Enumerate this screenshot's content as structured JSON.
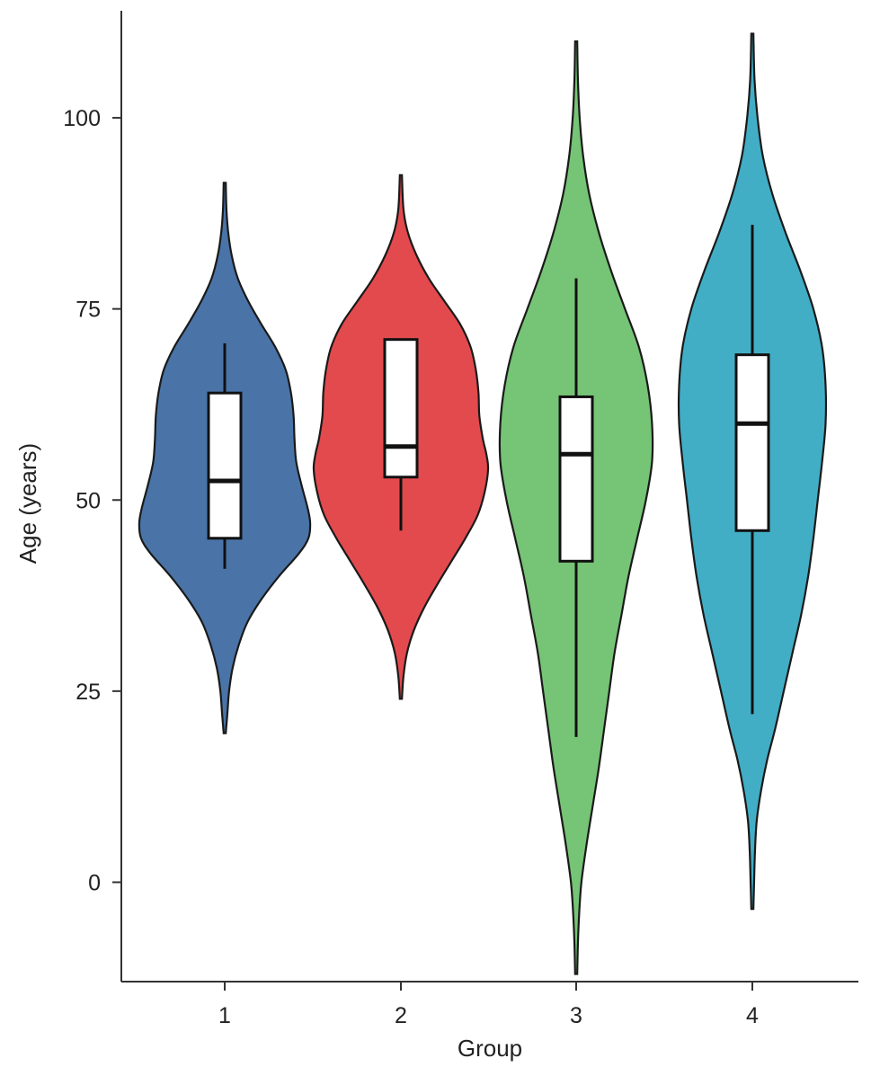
{
  "chart_data": {
    "type": "violin",
    "title": "",
    "xlabel": "Group",
    "ylabel": "Age (years)",
    "ylim": [
      -13,
      114
    ],
    "y_ticks": [
      0,
      25,
      50,
      75,
      100
    ],
    "categories": [
      "1",
      "2",
      "3",
      "4"
    ],
    "grid": false,
    "legend": "none",
    "series": [
      {
        "category": "1",
        "color": "#4a74a8",
        "box": {
          "whisker_low": 41,
          "q1": 45,
          "median": 52.5,
          "q3": 64,
          "whisker_high": 70.5
        },
        "density": {
          "y": [
            19.5,
            22,
            25,
            28,
            31,
            34,
            37,
            40,
            43,
            45,
            47,
            49,
            52,
            55,
            58,
            61,
            64,
            67,
            70,
            73,
            76,
            79,
            82,
            85,
            88,
            91.5
          ],
          "half_width": [
            0.012,
            0.03,
            0.05,
            0.09,
            0.16,
            0.26,
            0.42,
            0.62,
            0.85,
            0.96,
            0.98,
            0.95,
            0.88,
            0.82,
            0.8,
            0.79,
            0.76,
            0.7,
            0.58,
            0.42,
            0.27,
            0.15,
            0.08,
            0.04,
            0.02,
            0.012
          ]
        }
      },
      {
        "category": "2",
        "color": "#e34a4e",
        "box": {
          "whisker_low": 46,
          "q1": 53,
          "median": 57,
          "q3": 71,
          "whisker_high": 71
        },
        "density": {
          "y": [
            24,
            27,
            30,
            33,
            36,
            39,
            42,
            45,
            48,
            51,
            54,
            56,
            58,
            61,
            64,
            67,
            70,
            73,
            76,
            79,
            82,
            85,
            88,
            92.5
          ],
          "half_width": [
            0.012,
            0.03,
            0.07,
            0.15,
            0.27,
            0.42,
            0.58,
            0.74,
            0.88,
            0.96,
            1.0,
            0.98,
            0.94,
            0.9,
            0.89,
            0.86,
            0.8,
            0.68,
            0.5,
            0.32,
            0.18,
            0.08,
            0.03,
            0.012
          ]
        }
      },
      {
        "category": "3",
        "color": "#76c476",
        "box": {
          "whisker_low": 19,
          "q1": 42,
          "median": 56,
          "q3": 63.5,
          "whisker_high": 79
        },
        "density": {
          "y": [
            -12,
            -8,
            -4,
            0,
            5,
            10,
            15,
            20,
            25,
            30,
            35,
            40,
            45,
            50,
            55,
            60,
            65,
            70,
            75,
            80,
            85,
            90,
            95,
            100,
            105,
            110
          ],
          "half_width": [
            0.012,
            0.02,
            0.035,
            0.06,
            0.12,
            0.19,
            0.26,
            0.32,
            0.38,
            0.44,
            0.52,
            0.6,
            0.7,
            0.8,
            0.87,
            0.87,
            0.82,
            0.72,
            0.56,
            0.4,
            0.26,
            0.15,
            0.08,
            0.04,
            0.02,
            0.012
          ]
        }
      },
      {
        "category": "4",
        "color": "#42aec6",
        "box": {
          "whisker_low": 22,
          "q1": 46,
          "median": 60,
          "q3": 69,
          "whisker_high": 86
        },
        "density": {
          "y": [
            -3.5,
            0,
            4,
            8,
            12,
            16,
            20,
            25,
            30,
            35,
            40,
            45,
            50,
            55,
            60,
            65,
            70,
            75,
            80,
            85,
            90,
            95,
            100,
            105,
            111
          ],
          "half_width": [
            0.012,
            0.02,
            0.03,
            0.05,
            0.1,
            0.17,
            0.26,
            0.36,
            0.46,
            0.56,
            0.64,
            0.7,
            0.75,
            0.8,
            0.84,
            0.84,
            0.8,
            0.7,
            0.55,
            0.38,
            0.23,
            0.12,
            0.06,
            0.025,
            0.012
          ]
        }
      }
    ]
  }
}
